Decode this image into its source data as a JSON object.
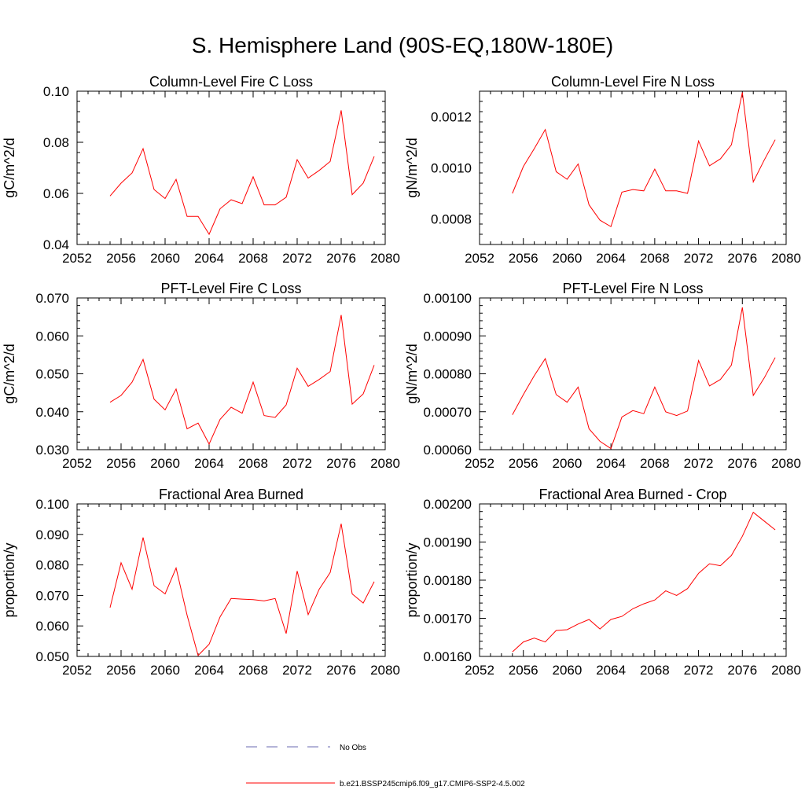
{
  "figure_title": "S. Hemisphere Land (90S-EQ,180W-180E)",
  "line_color": "#ff0000",
  "obs_color": "#6a6ab0",
  "legend": {
    "obs_label": "No Obs",
    "model_label": "b.e21.BSSP245cmip6.f09_g17.CMIP6-SSP2-4.5.002"
  },
  "chart_data": [
    {
      "type": "line",
      "title": "Column-Level Fire C Loss",
      "ylabel": "gC/m^2/d",
      "xlim": [
        2052,
        2080
      ],
      "ylim": [
        0.04,
        0.1
      ],
      "xticks": [
        "2052",
        "2056",
        "2060",
        "2064",
        "2068",
        "2072",
        "2076",
        "2080"
      ],
      "yticks": [
        "0.04",
        "0.06",
        "0.08",
        "0.10"
      ],
      "grid": false,
      "series": [
        {
          "x": [
            2055,
            2056,
            2057,
            2058,
            2059,
            2060,
            2061,
            2062,
            2063,
            2064,
            2065,
            2066,
            2067,
            2068,
            2069,
            2070,
            2071,
            2072,
            2073,
            2074,
            2075,
            2076,
            2077,
            2078,
            2079
          ],
          "values": [
            0.059,
            0.064,
            0.068,
            0.0775,
            0.0615,
            0.058,
            0.0655,
            0.051,
            0.051,
            0.044,
            0.054,
            0.0575,
            0.056,
            0.0665,
            0.0555,
            0.0555,
            0.0585,
            0.0732,
            0.066,
            0.069,
            0.0725,
            0.0925,
            0.0595,
            0.064,
            0.0745
          ]
        }
      ]
    },
    {
      "type": "line",
      "title": "Column-Level Fire N Loss",
      "ylabel": "gN/m^2/d",
      "xlim": [
        2052,
        2080
      ],
      "ylim": [
        0.0007,
        0.0013
      ],
      "xticks": [
        "2052",
        "2056",
        "2060",
        "2064",
        "2068",
        "2072",
        "2076",
        "2080"
      ],
      "yticks": [
        "0.0008",
        "0.0010",
        "0.0012"
      ],
      "ytick_values": [
        0.0008,
        0.001,
        0.0012
      ],
      "grid": false,
      "series": [
        {
          "x": [
            2055,
            2056,
            2057,
            2058,
            2059,
            2060,
            2061,
            2062,
            2063,
            2064,
            2065,
            2066,
            2067,
            2068,
            2069,
            2070,
            2071,
            2072,
            2073,
            2074,
            2075,
            2076,
            2077,
            2078,
            2079
          ],
          "values": [
            0.0009,
            0.001005,
            0.001075,
            0.00115,
            0.000985,
            0.000955,
            0.001015,
            0.000855,
            0.000795,
            0.00077,
            0.000905,
            0.000915,
            0.00091,
            0.000995,
            0.00091,
            0.00091,
            0.0009,
            0.001105,
            0.001008,
            0.001035,
            0.00109,
            0.001295,
            0.000945,
            0.00103,
            0.00111
          ]
        }
      ]
    },
    {
      "type": "line",
      "title": "PFT-Level Fire C Loss",
      "ylabel": "gC/m^2/d",
      "xlim": [
        2052,
        2080
      ],
      "ylim": [
        0.03,
        0.07
      ],
      "xticks": [
        "2052",
        "2056",
        "2060",
        "2064",
        "2068",
        "2072",
        "2076",
        "2080"
      ],
      "yticks": [
        "0.030",
        "0.040",
        "0.050",
        "0.060",
        "0.070"
      ],
      "grid": false,
      "series": [
        {
          "x": [
            2055,
            2056,
            2057,
            2058,
            2059,
            2060,
            2061,
            2062,
            2063,
            2064,
            2065,
            2066,
            2067,
            2068,
            2069,
            2070,
            2071,
            2072,
            2073,
            2074,
            2075,
            2076,
            2077,
            2078,
            2079
          ],
          "values": [
            0.0425,
            0.0443,
            0.0478,
            0.0538,
            0.0433,
            0.0405,
            0.046,
            0.0355,
            0.037,
            0.0315,
            0.038,
            0.0412,
            0.0396,
            0.0478,
            0.039,
            0.0385,
            0.0418,
            0.0515,
            0.0467,
            0.0485,
            0.0506,
            0.0655,
            0.042,
            0.0447,
            0.0523
          ]
        }
      ]
    },
    {
      "type": "line",
      "title": "PFT-Level Fire N Loss",
      "ylabel": "gN/m^2/d",
      "xlim": [
        2052,
        2080
      ],
      "ylim": [
        0.0006,
        0.001
      ],
      "xticks": [
        "2052",
        "2056",
        "2060",
        "2064",
        "2068",
        "2072",
        "2076",
        "2080"
      ],
      "yticks": [
        "0.00060",
        "0.00070",
        "0.00080",
        "0.00090",
        "0.00100"
      ],
      "grid": false,
      "series": [
        {
          "x": [
            2055,
            2056,
            2057,
            2058,
            2059,
            2060,
            2061,
            2062,
            2063,
            2064,
            2065,
            2066,
            2067,
            2068,
            2069,
            2070,
            2071,
            2072,
            2073,
            2074,
            2075,
            2076,
            2077,
            2078,
            2079
          ],
          "values": [
            0.000692,
            0.000745,
            0.000795,
            0.00084,
            0.000745,
            0.000725,
            0.000765,
            0.000655,
            0.000622,
            0.000603,
            0.000686,
            0.000703,
            0.000695,
            0.000765,
            0.0007,
            0.00069,
            0.000702,
            0.000835,
            0.000768,
            0.000785,
            0.000823,
            0.000975,
            0.000743,
            0.000789,
            0.000843
          ]
        }
      ]
    },
    {
      "type": "line",
      "title": "Fractional Area Burned",
      "ylabel": "proportion/y",
      "xlim": [
        2052,
        2080
      ],
      "ylim": [
        0.05,
        0.1
      ],
      "xticks": [
        "2052",
        "2056",
        "2060",
        "2064",
        "2068",
        "2072",
        "2076",
        "2080"
      ],
      "yticks": [
        "0.050",
        "0.060",
        "0.070",
        "0.080",
        "0.090",
        "0.100"
      ],
      "grid": false,
      "series": [
        {
          "x": [
            2055,
            2056,
            2057,
            2058,
            2059,
            2060,
            2061,
            2062,
            2063,
            2064,
            2065,
            2066,
            2067,
            2068,
            2069,
            2070,
            2071,
            2072,
            2073,
            2074,
            2075,
            2076,
            2077,
            2078,
            2079
          ],
          "values": [
            0.066,
            0.0807,
            0.072,
            0.089,
            0.0732,
            0.0705,
            0.079,
            0.0635,
            0.0503,
            0.054,
            0.063,
            0.069,
            0.0688,
            0.0686,
            0.0682,
            0.069,
            0.0575,
            0.078,
            0.0637,
            0.072,
            0.0775,
            0.0935,
            0.0705,
            0.0675,
            0.0745
          ]
        }
      ]
    },
    {
      "type": "line",
      "title": "Fractional Area Burned - Crop",
      "ylabel": "proportion/y",
      "xlim": [
        2052,
        2080
      ],
      "ylim": [
        0.0016,
        0.002
      ],
      "xticks": [
        "2052",
        "2056",
        "2060",
        "2064",
        "2068",
        "2072",
        "2076",
        "2080"
      ],
      "yticks": [
        "0.00160",
        "0.00170",
        "0.00180",
        "0.00190",
        "0.00200"
      ],
      "grid": false,
      "series": [
        {
          "x": [
            2055,
            2056,
            2057,
            2058,
            2059,
            2060,
            2061,
            2062,
            2063,
            2064,
            2065,
            2066,
            2067,
            2068,
            2069,
            2070,
            2071,
            2072,
            2073,
            2074,
            2075,
            2076,
            2077,
            2078,
            2079
          ],
          "values": [
            0.001612,
            0.001638,
            0.001648,
            0.001638,
            0.001668,
            0.00167,
            0.001685,
            0.001697,
            0.001672,
            0.001697,
            0.001705,
            0.001725,
            0.001738,
            0.001748,
            0.001772,
            0.00176,
            0.001778,
            0.001818,
            0.001843,
            0.001838,
            0.001865,
            0.001915,
            0.001978,
            0.001955,
            0.001932
          ]
        }
      ]
    }
  ]
}
